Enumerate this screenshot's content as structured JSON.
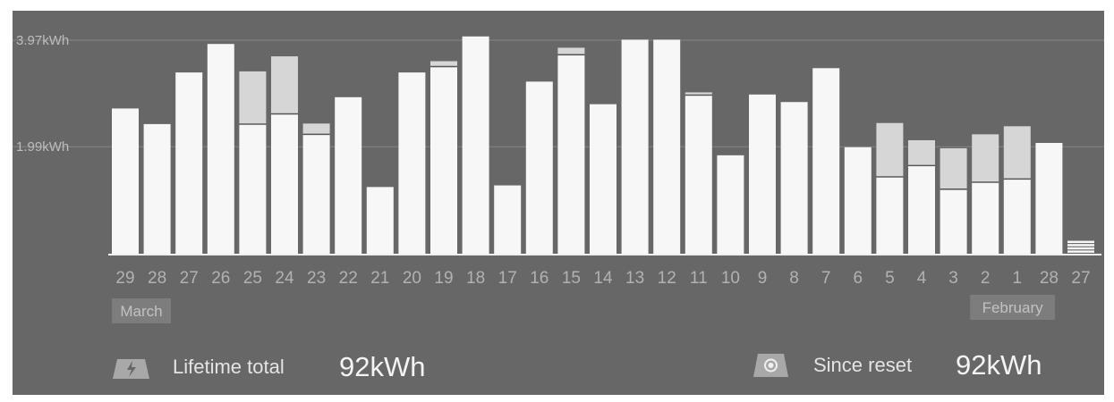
{
  "chart_data": {
    "type": "bar",
    "stacked": true,
    "yticks": [
      {
        "label": "3.97kWh",
        "value": 3.97
      },
      {
        "label": "1.99kWh",
        "value": 1.99
      }
    ],
    "ylim": [
      0,
      4.1
    ],
    "grid": true,
    "categories": [
      "29",
      "28",
      "27",
      "26",
      "25",
      "24",
      "23",
      "22",
      "21",
      "20",
      "19",
      "18",
      "17",
      "16",
      "15",
      "14",
      "13",
      "12",
      "11",
      "10",
      "9",
      "8",
      "7",
      "6",
      "5",
      "4",
      "3",
      "2",
      "1",
      "28",
      "27"
    ],
    "month_labels": [
      {
        "label": "March",
        "category_index": 0
      },
      {
        "label": "February",
        "category_index": 27
      }
    ],
    "series": [
      {
        "values": [
          2.7,
          2.41,
          3.37,
          3.9,
          2.41,
          2.6,
          2.22,
          2.91,
          1.24,
          3.37,
          3.48,
          4.04,
          1.27,
          3.2,
          3.7,
          2.78,
          3.98,
          3.98,
          2.95,
          1.83,
          2.96,
          2.82,
          3.45,
          1.98,
          1.43,
          1.64,
          1.2,
          1.33,
          1.39,
          2.06,
          0.1
        ],
        "color": "#f7f7f7"
      },
      {
        "values": [
          0,
          0,
          0,
          0,
          0.98,
          1.07,
          0.2,
          0,
          0,
          0,
          0.1,
          0,
          0,
          0,
          0.13,
          0,
          0,
          0,
          0.05,
          0,
          0,
          0,
          0,
          0,
          1.0,
          0.47,
          0.76,
          0.89,
          0.98,
          0,
          0.14
        ],
        "color": "#d6d6d6"
      }
    ]
  },
  "footer": {
    "lifetime_label": "Lifetime total",
    "lifetime_value": "92kWh",
    "reset_label": "Since reset",
    "reset_value": "92kWh",
    "lifetime_icon": "lightning-icon",
    "reset_icon": "target-icon"
  },
  "colors": {
    "background": "#676767",
    "bar": "#f7f7f7",
    "bar_top": "#d6d6d6",
    "grid": "#858585",
    "axis": "#f0f0f0",
    "icon": "#a8a8a8"
  }
}
